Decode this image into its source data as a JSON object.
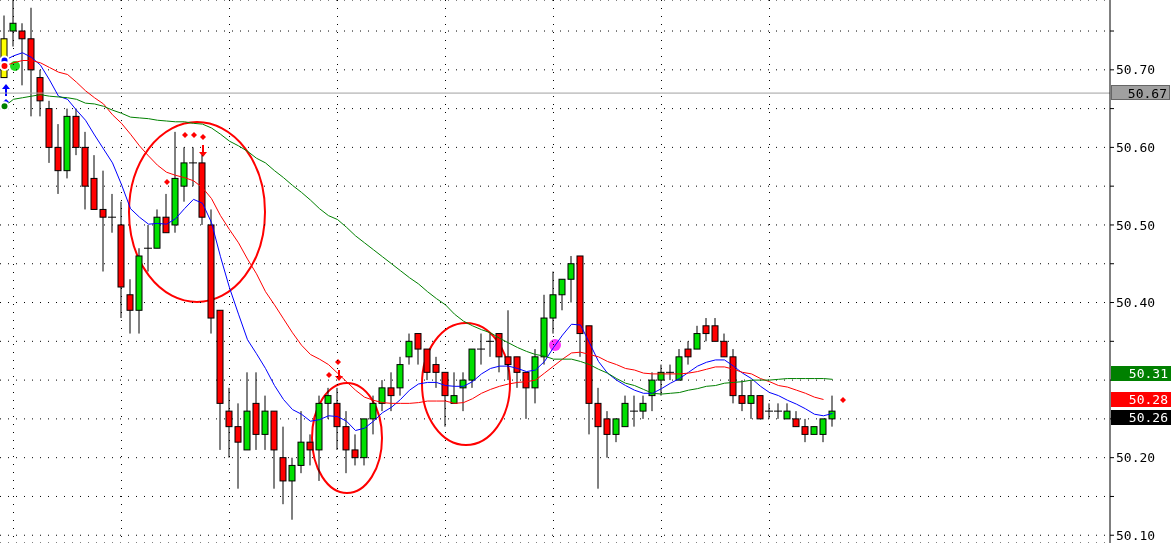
{
  "chart_data": {
    "type": "candlestick",
    "categories": [
      null,
      null,
      null,
      null,
      null,
      null,
      null,
      null,
      null,
      null,
      null,
      null,
      null,
      null,
      null,
      null,
      null,
      null,
      null,
      null,
      null,
      null,
      null,
      null,
      null,
      null,
      null,
      null,
      null,
      null,
      null,
      null,
      null,
      null,
      null,
      null,
      null,
      null,
      null,
      null,
      null,
      null,
      null,
      null,
      null,
      null,
      null,
      null,
      null,
      null,
      null,
      null,
      null,
      null,
      null,
      null,
      null,
      null,
      null,
      null,
      null,
      null,
      null,
      null,
      null,
      null,
      null,
      null,
      null,
      null,
      null,
      null,
      null,
      null,
      null,
      null,
      null,
      null,
      null,
      null,
      null,
      null,
      null,
      null,
      null,
      null,
      null,
      null,
      null,
      null,
      null,
      null,
      null
    ],
    "ohlc": [
      [
        50.69,
        50.77,
        50.69,
        50.74
      ],
      [
        50.75,
        50.79,
        50.73,
        50.76
      ],
      [
        50.75,
        50.76,
        50.68,
        50.74
      ],
      [
        50.74,
        50.78,
        50.64,
        50.7
      ],
      [
        50.69,
        50.7,
        50.64,
        50.66
      ],
      [
        50.65,
        50.66,
        50.58,
        50.6
      ],
      [
        50.6,
        50.63,
        50.54,
        50.57
      ],
      [
        50.57,
        50.65,
        50.56,
        50.64
      ],
      [
        50.64,
        50.65,
        50.59,
        50.6
      ],
      [
        50.6,
        50.62,
        50.52,
        50.55
      ],
      [
        50.56,
        50.59,
        50.52,
        50.52
      ],
      [
        50.52,
        50.57,
        50.44,
        50.51
      ],
      [
        50.51,
        50.54,
        50.49,
        50.51
      ],
      [
        50.5,
        50.53,
        50.38,
        50.42
      ],
      [
        50.41,
        50.43,
        50.36,
        50.39
      ],
      [
        50.39,
        50.47,
        50.36,
        50.46
      ],
      [
        50.47,
        50.5,
        50.44,
        50.47
      ],
      [
        50.47,
        50.52,
        50.47,
        50.51
      ],
      [
        50.51,
        50.54,
        50.49,
        50.49
      ],
      [
        50.5,
        50.62,
        50.49,
        50.56
      ],
      [
        50.55,
        50.6,
        50.53,
        50.58
      ],
      [
        50.58,
        50.6,
        50.55,
        50.58
      ],
      [
        50.58,
        50.59,
        50.5,
        50.51
      ],
      [
        50.5,
        50.52,
        50.36,
        50.38
      ],
      [
        50.39,
        50.39,
        50.21,
        50.27
      ],
      [
        50.26,
        50.29,
        50.2,
        50.24
      ],
      [
        50.24,
        50.27,
        50.16,
        50.22
      ],
      [
        50.21,
        50.31,
        50.21,
        50.26
      ],
      [
        50.27,
        50.31,
        50.21,
        50.23
      ],
      [
        50.23,
        50.28,
        50.21,
        50.26
      ],
      [
        50.26,
        50.26,
        50.16,
        50.21
      ],
      [
        50.2,
        50.24,
        50.14,
        50.17
      ],
      [
        50.17,
        50.2,
        50.12,
        50.19
      ],
      [
        50.19,
        50.26,
        50.18,
        50.22
      ],
      [
        50.22,
        50.23,
        50.19,
        50.21
      ],
      [
        50.21,
        50.28,
        50.17,
        50.27
      ],
      [
        50.27,
        50.29,
        50.25,
        50.28
      ],
      [
        50.27,
        50.29,
        50.21,
        50.24
      ],
      [
        50.24,
        50.26,
        50.18,
        50.21
      ],
      [
        50.21,
        50.23,
        50.19,
        50.2
      ],
      [
        50.2,
        50.25,
        50.19,
        50.25
      ],
      [
        50.25,
        50.28,
        50.23,
        50.27
      ],
      [
        50.27,
        50.3,
        50.26,
        50.29
      ],
      [
        50.29,
        50.31,
        50.26,
        50.28
      ],
      [
        50.29,
        50.33,
        50.28,
        50.32
      ],
      [
        50.33,
        50.36,
        50.32,
        50.35
      ],
      [
        50.36,
        50.36,
        50.32,
        50.34
      ],
      [
        50.34,
        50.34,
        50.3,
        50.31
      ],
      [
        50.32,
        50.33,
        50.29,
        50.31
      ],
      [
        50.31,
        50.31,
        50.24,
        50.28
      ],
      [
        50.27,
        50.31,
        50.27,
        50.28
      ],
      [
        50.29,
        50.31,
        50.26,
        50.3
      ],
      [
        50.3,
        50.34,
        50.29,
        50.34
      ],
      [
        50.34,
        50.36,
        50.32,
        50.34
      ],
      [
        50.35,
        50.36,
        50.33,
        50.35
      ],
      [
        50.36,
        50.36,
        50.31,
        50.33
      ],
      [
        50.33,
        50.39,
        50.3,
        50.32
      ],
      [
        50.33,
        50.33,
        50.29,
        50.31
      ],
      [
        50.31,
        50.31,
        50.25,
        50.29
      ],
      [
        50.29,
        50.34,
        50.27,
        50.33
      ],
      [
        50.33,
        50.41,
        50.32,
        50.38
      ],
      [
        50.38,
        50.44,
        50.36,
        50.41
      ],
      [
        50.41,
        50.43,
        50.39,
        50.43
      ],
      [
        50.43,
        50.46,
        50.4,
        50.45
      ],
      [
        50.46,
        50.46,
        50.33,
        50.36
      ],
      [
        50.37,
        50.37,
        50.23,
        50.27
      ],
      [
        50.27,
        50.29,
        50.16,
        50.24
      ],
      [
        50.25,
        50.26,
        50.2,
        50.23
      ],
      [
        50.23,
        50.25,
        50.22,
        50.25
      ],
      [
        50.24,
        50.28,
        50.24,
        50.27
      ],
      [
        50.26,
        50.28,
        50.24,
        50.26
      ],
      [
        50.26,
        50.28,
        50.25,
        50.27
      ],
      [
        50.28,
        50.31,
        50.26,
        50.3
      ],
      [
        50.3,
        50.32,
        50.28,
        50.31
      ],
      [
        50.31,
        50.32,
        50.3,
        50.31
      ],
      [
        50.3,
        50.34,
        50.3,
        50.33
      ],
      [
        50.34,
        50.35,
        50.32,
        50.33
      ],
      [
        50.34,
        50.37,
        50.34,
        50.36
      ],
      [
        50.37,
        50.38,
        50.35,
        50.36
      ],
      [
        50.37,
        50.38,
        50.35,
        50.35
      ],
      [
        50.35,
        50.36,
        50.33,
        50.33
      ],
      [
        50.33,
        50.34,
        50.27,
        50.28
      ],
      [
        50.28,
        50.3,
        50.26,
        50.27
      ],
      [
        50.27,
        50.3,
        50.25,
        50.28
      ],
      [
        50.28,
        50.28,
        50.25,
        50.25
      ],
      [
        50.26,
        50.27,
        50.25,
        50.26
      ],
      [
        50.26,
        50.27,
        50.25,
        50.26
      ],
      [
        50.25,
        50.27,
        50.25,
        50.26
      ],
      [
        50.25,
        50.26,
        50.24,
        50.24
      ],
      [
        50.24,
        50.25,
        50.22,
        50.23
      ],
      [
        50.23,
        50.24,
        50.23,
        50.24
      ],
      [
        50.23,
        50.25,
        50.22,
        50.25
      ],
      [
        50.25,
        50.28,
        50.24,
        50.26
      ]
    ],
    "colors": [
      "#ffff00",
      "#00e000",
      "#ff0000",
      "#ff0000",
      "#ff0000",
      "#ff0000",
      "#ff0000",
      "#00e000",
      "#ff0000",
      "#ff0000",
      "#ff0000",
      "#ff0000",
      "#000000",
      "#ff0000",
      "#ff0000",
      "#00e000",
      "#000000",
      "#00e000",
      "#ff0000",
      "#00e000",
      "#00e000",
      "#000000",
      "#ff0000",
      "#ff0000",
      "#ff0000",
      "#ff0000",
      "#ff0000",
      "#00e000",
      "#ff0000",
      "#00e000",
      "#ff0000",
      "#ff0000",
      "#00e000",
      "#00e000",
      "#ff0000",
      "#00e000",
      "#00e000",
      "#ff0000",
      "#ff0000",
      "#ff0000",
      "#00e000",
      "#00e000",
      "#00e000",
      "#ff0000",
      "#00e000",
      "#00e000",
      "#ff0000",
      "#ff0000",
      "#ff0000",
      "#ff0000",
      "#00e000",
      "#00e000",
      "#00e000",
      "#000000",
      "#000000",
      "#ff0000",
      "#ff0000",
      "#ff0000",
      "#ff0000",
      "#00e000",
      "#00e000",
      "#00e000",
      "#00e000",
      "#00e000",
      "#ff0000",
      "#ff0000",
      "#ff0000",
      "#ff0000",
      "#00e000",
      "#00e000",
      "#000000",
      "#00e000",
      "#00e000",
      "#00e000",
      "#000000",
      "#00e000",
      "#ff0000",
      "#00e000",
      "#ff0000",
      "#ff0000",
      "#ff0000",
      "#ff0000",
      "#ff0000",
      "#00e000",
      "#ff0000",
      "#000000",
      "#000000",
      "#00e000",
      "#ff0000",
      "#ff0000",
      "#00e000",
      "#00e000",
      "#00e000"
    ],
    "series": [
      {
        "type": "line",
        "color": "#0000ff",
        "values": [
          50.712,
          50.718,
          50.722,
          50.716,
          50.706,
          50.687,
          50.666,
          50.662,
          50.648,
          50.635,
          50.616,
          50.598,
          50.58,
          50.552,
          50.521,
          50.51,
          50.501,
          50.502,
          50.501,
          50.508,
          50.521,
          50.533,
          50.528,
          50.503,
          50.459,
          50.419,
          50.385,
          50.352,
          50.334,
          50.315,
          50.293,
          50.275,
          50.262,
          50.256,
          50.247,
          50.249,
          50.254,
          50.253,
          50.247,
          50.235,
          50.238,
          50.247,
          50.258,
          50.265,
          50.275,
          50.287,
          50.295,
          50.297,
          50.297,
          50.293,
          50.292,
          50.292,
          50.298,
          50.308,
          50.315,
          50.318,
          50.318,
          50.315,
          50.311,
          50.313,
          50.324,
          50.342,
          50.358,
          50.372,
          50.371,
          50.348,
          50.324,
          50.309,
          50.3,
          50.293,
          50.287,
          50.283,
          50.283,
          50.289,
          50.296,
          50.302,
          50.31,
          50.318,
          50.323,
          50.326,
          50.326,
          50.318,
          50.309,
          50.302,
          50.292,
          50.284,
          50.28,
          50.274,
          50.269,
          50.263,
          50.256,
          50.254,
          50.257
        ]
      },
      {
        "type": "line",
        "color": "#ff0000",
        "values": [
          50.705,
          50.709,
          50.712,
          50.712,
          50.709,
          50.703,
          50.697,
          50.694,
          50.684,
          50.673,
          50.664,
          50.656,
          50.642,
          50.631,
          50.617,
          50.602,
          50.589,
          50.577,
          50.568,
          50.564,
          50.561,
          50.557,
          50.548,
          50.534,
          50.512,
          50.494,
          50.477,
          50.456,
          50.437,
          50.414,
          50.397,
          50.379,
          50.361,
          50.345,
          50.333,
          50.327,
          50.32,
          50.309,
          50.298,
          50.287,
          50.278,
          50.274,
          50.271,
          50.27,
          50.27,
          50.27,
          50.271,
          50.273,
          50.273,
          50.273,
          50.27,
          50.271,
          50.276,
          50.283,
          50.288,
          50.292,
          50.295,
          50.297,
          50.298,
          50.3,
          50.309,
          50.318,
          50.327,
          50.335,
          50.336,
          50.333,
          50.33,
          50.324,
          50.32,
          50.315,
          50.313,
          50.309,
          50.308,
          50.308,
          50.308,
          50.308,
          50.309,
          50.311,
          50.314,
          50.317,
          50.317,
          50.314,
          50.31,
          50.308,
          50.302,
          50.298,
          50.293,
          50.291,
          50.287,
          50.283,
          50.278,
          50.275,
          null
        ]
      },
      {
        "type": "line",
        "color": "#008000",
        "values": [
          50.653,
          50.662,
          50.664,
          50.666,
          50.668,
          50.666,
          50.665,
          50.664,
          50.662,
          50.657,
          50.656,
          50.653,
          50.648,
          50.644,
          50.639,
          50.638,
          50.637,
          50.635,
          50.634,
          50.633,
          50.633,
          50.631,
          50.63,
          50.625,
          50.617,
          50.608,
          50.602,
          50.595,
          50.586,
          50.58,
          50.57,
          50.561,
          50.551,
          50.542,
          50.532,
          50.521,
          50.512,
          50.507,
          50.497,
          50.486,
          50.477,
          50.468,
          50.459,
          50.45,
          50.441,
          50.432,
          50.424,
          50.414,
          50.405,
          50.397,
          50.385,
          50.376,
          50.37,
          50.365,
          50.361,
          50.354,
          50.348,
          50.342,
          50.337,
          50.333,
          50.331,
          50.327,
          50.327,
          50.327,
          50.324,
          50.32,
          50.314,
          50.309,
          50.302,
          50.296,
          50.293,
          50.288,
          50.283,
          50.282,
          50.283,
          50.284,
          50.287,
          50.289,
          50.292,
          50.293,
          50.296,
          50.297,
          50.298,
          50.3,
          50.3,
          50.3,
          50.301,
          50.302,
          50.302,
          50.302,
          50.302,
          50.302,
          50.301
        ]
      }
    ],
    "ylim": [
      50.09,
      50.79
    ],
    "yticks": [
      {
        "value": 50.1,
        "label": "50.10"
      },
      {
        "value": 50.15,
        "label": null
      },
      {
        "value": 50.2,
        "label": "50.20"
      },
      {
        "value": 50.25,
        "label": null
      },
      {
        "value": 50.3,
        "label": null
      },
      {
        "value": 50.35,
        "label": null
      },
      {
        "value": 50.4,
        "label": "50.40"
      },
      {
        "value": 50.45,
        "label": null
      },
      {
        "value": 50.5,
        "label": "50.50"
      },
      {
        "value": 50.55,
        "label": null
      },
      {
        "value": 50.6,
        "label": "50.60"
      },
      {
        "value": 50.65,
        "label": null
      },
      {
        "value": 50.7,
        "label": "50.70"
      },
      {
        "value": 50.75,
        "label": null
      }
    ],
    "ref_lines": [
      {
        "axis": "y",
        "value": 50.67,
        "label": "50.67",
        "color": "#a0a0a0"
      }
    ],
    "annotations": [
      "50.31",
      "50.28",
      "50.26"
    ],
    "grid": true,
    "tick_labels": "y"
  }
}
